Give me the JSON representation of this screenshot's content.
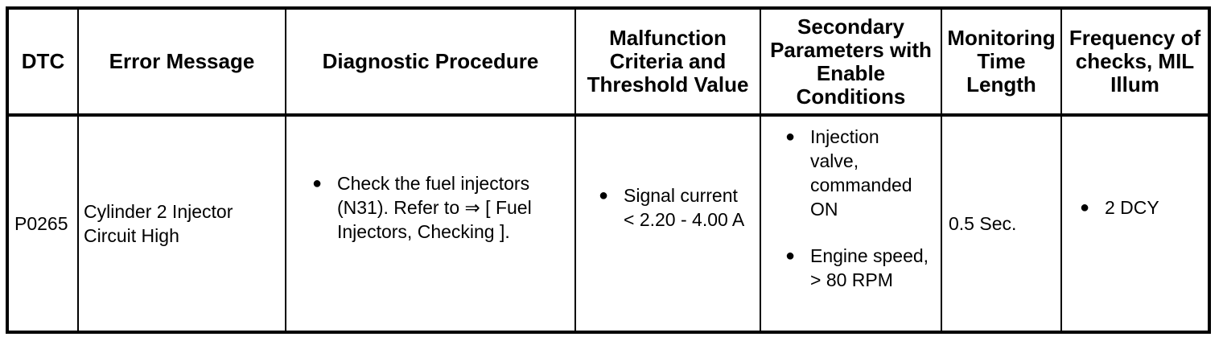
{
  "bullet_glyph": "●",
  "colors": {
    "border": "#000000",
    "text": "#000000",
    "background": "#ffffff"
  },
  "table": {
    "header": {
      "cells": [
        {
          "name": "dtc",
          "lines": [
            "DTC"
          ]
        },
        {
          "name": "error-message",
          "lines": [
            "Error Message"
          ]
        },
        {
          "name": "diagnostic-procedure",
          "lines": [
            "Diagnostic Procedure"
          ]
        },
        {
          "name": "malfunction-criteria",
          "lines": [
            "Malfunction",
            "Criteria and",
            "Threshold Value"
          ]
        },
        {
          "name": "secondary-parameters",
          "lines": [
            "Secondary",
            "Parameters with",
            "Enable",
            "Conditions"
          ]
        },
        {
          "name": "monitoring-time",
          "lines": [
            "Monitoring",
            "Time",
            "Length"
          ]
        },
        {
          "name": "frequency",
          "lines": [
            "Frequency of",
            "checks, MIL",
            "Illum"
          ]
        }
      ]
    },
    "row": {
      "dtc": "P0265",
      "error_message": {
        "lines": [
          "Cylinder 2 Injector",
          "Circuit High"
        ]
      },
      "diagnostic_procedure": {
        "items": [
          {
            "lines": [
              "Check the fuel injectors",
              "(N31). Refer to ⇒ [ Fuel",
              "Injectors, Checking ]."
            ]
          }
        ]
      },
      "malfunction_criteria": {
        "items": [
          {
            "lines": [
              "Signal current",
              "< 2.20 - 4.00 A"
            ]
          }
        ]
      },
      "secondary_parameters": {
        "items": [
          {
            "lines": [
              "Injection",
              "valve,",
              "commanded",
              "ON"
            ]
          },
          {
            "lines": [
              "Engine speed,",
              "> 80 RPM"
            ]
          }
        ]
      },
      "monitoring_time": "0.5 Sec.",
      "frequency": {
        "items": [
          {
            "lines": [
              "2 DCY"
            ]
          }
        ]
      }
    }
  }
}
